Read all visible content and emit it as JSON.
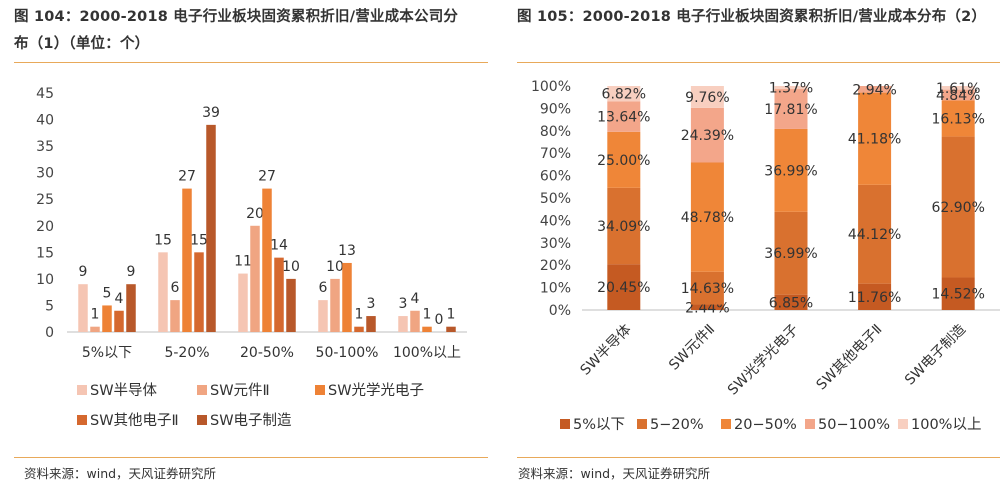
{
  "charts": [
    {
      "title_line1": "图 104：2000-2018 电子行业板块固资累积折旧/营业成本公司分",
      "title_line2": "布（1）（单位：个）",
      "source": "资料来源：wind，天风证券研究所"
    },
    {
      "title_line1": "图 105：2000-2018 电子行业板块固资累积折旧/营业成本分布（2）",
      "source": "资料来源：wind，天风证券研究所"
    }
  ],
  "chart_data": [
    {
      "type": "bar",
      "title": "图 104：2000-2018 电子行业板块固资累积折旧/营业成本公司分布（1）（单位：个）",
      "categories": [
        "5%以下",
        "5-20%",
        "20-50%",
        "50-100%",
        "100%以上"
      ],
      "series": [
        {
          "name": "SW半导体",
          "color": "#f5c5b3",
          "values": [
            9,
            15,
            11,
            6,
            3
          ]
        },
        {
          "name": "SW元件Ⅱ",
          "color": "#f0a582",
          "values": [
            1,
            6,
            20,
            10,
            4
          ]
        },
        {
          "name": "SW光学光电子",
          "color": "#ee8236",
          "values": [
            5,
            27,
            27,
            13,
            1
          ]
        },
        {
          "name": "SW其他电子Ⅱ",
          "color": "#d5682e",
          "values": [
            4,
            15,
            14,
            1,
            0
          ]
        },
        {
          "name": "SW电子制造",
          "color": "#b8582a",
          "values": [
            9,
            39,
            10,
            3,
            1
          ]
        }
      ],
      "ylim": [
        0,
        45
      ],
      "yticks": [
        0,
        5,
        10,
        15,
        20,
        25,
        30,
        35,
        40,
        45
      ],
      "grid": false,
      "legend_position": "bottom"
    },
    {
      "type": "bar",
      "stacked": true,
      "title": "图 105：2000-2018 电子行业板块固资累积折旧/营业成本分布（2）",
      "categories": [
        "SW半导体",
        "SW元件Ⅱ",
        "SW光学光电子",
        "SW其他电子Ⅱ",
        "SW电子制造"
      ],
      "series": [
        {
          "name": "5%以下",
          "color": "#c55a22",
          "values": [
            20.45,
            2.44,
            6.85,
            11.76,
            14.52
          ],
          "labels": [
            "20.45%",
            "2.44%",
            "6.85%",
            "11.76%",
            "14.52%"
          ]
        },
        {
          "name": "5−20%",
          "color": "#d9712f",
          "values": [
            34.09,
            14.63,
            36.99,
            44.12,
            62.9
          ],
          "labels": [
            "34.09%",
            "14.63%",
            "36.99%",
            "44.12%",
            "62.90%"
          ]
        },
        {
          "name": "20−50%",
          "color": "#ef8638",
          "values": [
            25.0,
            48.78,
            36.99,
            41.18,
            16.13
          ],
          "labels": [
            "25.00%",
            "48.78%",
            "36.99%",
            "41.18%",
            "16.13%"
          ]
        },
        {
          "name": "50−100%",
          "color": "#f3a68a",
          "values": [
            13.64,
            24.39,
            17.81,
            2.94,
            4.84
          ],
          "labels": [
            "13.64%",
            "24.39%",
            "17.81%",
            "2.94%",
            "4.84%"
          ]
        },
        {
          "name": "100%以上",
          "color": "#f8cfc0",
          "values": [
            6.82,
            9.76,
            1.37,
            0,
            1.61
          ],
          "labels": [
            "6.82%",
            "9.76%",
            "1.37%",
            "",
            "1.61%"
          ]
        }
      ],
      "ylim": [
        0,
        100
      ],
      "yticks": [
        "0%",
        "10%",
        "20%",
        "30%",
        "40%",
        "50%",
        "60%",
        "70%",
        "80%",
        "90%",
        "100%"
      ],
      "grid": false,
      "legend_position": "bottom"
    }
  ]
}
